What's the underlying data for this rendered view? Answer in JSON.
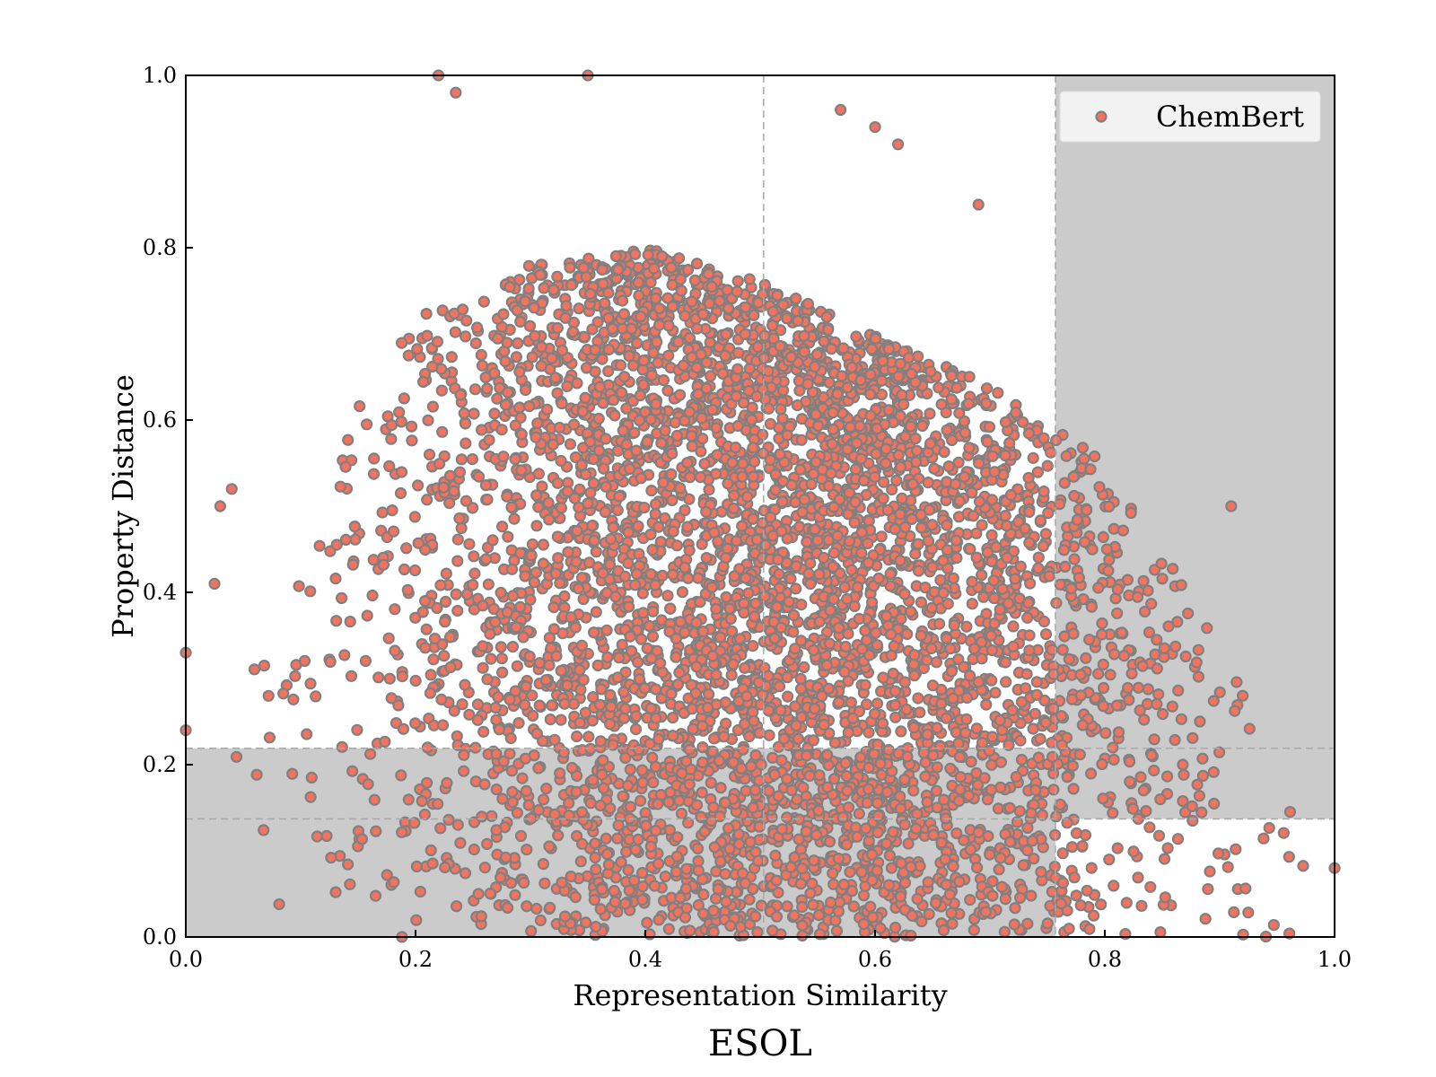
{
  "chart_data": {
    "type": "scatter",
    "title": "",
    "caption": "ESOL",
    "xlabel": "Representation Similarity",
    "ylabel": "Property Distance",
    "xlim": [
      0.0,
      1.0
    ],
    "ylim": [
      0.0,
      1.0
    ],
    "xticks": [
      "0.0",
      "0.2",
      "0.4",
      "0.6",
      "0.8",
      "1.0"
    ],
    "yticks": [
      "0.0",
      "0.2",
      "0.4",
      "0.6",
      "0.8",
      "1.0"
    ],
    "grid": false,
    "legend_position": "top-right",
    "series": [
      {
        "name": "ChemBert",
        "marker_fill": "#f4735f",
        "marker_edge": "#808080",
        "density_profile": {
          "x": [
            0.0,
            0.1,
            0.15,
            0.2,
            0.3,
            0.4,
            0.5,
            0.6,
            0.7,
            0.75,
            0.8,
            0.85,
            0.9,
            0.95,
            1.0
          ],
          "y_max": [
            0.24,
            0.42,
            0.62,
            0.72,
            0.78,
            0.8,
            0.76,
            0.7,
            0.64,
            0.6,
            0.55,
            0.45,
            0.34,
            0.2,
            0.08
          ]
        },
        "outliers": [
          [
            0.0,
            0.33
          ],
          [
            0.0,
            0.24
          ],
          [
            0.03,
            0.5
          ],
          [
            0.04,
            0.52
          ],
          [
            0.025,
            0.41
          ],
          [
            0.22,
            1.0
          ],
          [
            0.235,
            0.98
          ],
          [
            0.35,
            1.0
          ],
          [
            0.57,
            0.96
          ],
          [
            0.6,
            0.94
          ],
          [
            0.62,
            0.92
          ],
          [
            0.69,
            0.85
          ],
          [
            0.91,
            0.5
          ],
          [
            0.92,
            0.28
          ],
          [
            1.0,
            0.08
          ]
        ]
      }
    ],
    "shaded_regions": [
      {
        "x": [
          0.0,
          0.757
        ],
        "y": [
          0.0,
          0.219
        ],
        "color": "#cbcbcb"
      },
      {
        "x": [
          0.757,
          1.0
        ],
        "y": [
          0.137,
          1.0
        ],
        "color": "#cbcbcb"
      }
    ],
    "reference_lines": {
      "vertical": [
        0.503,
        0.757
      ],
      "horizontal": [
        0.219,
        0.137
      ]
    }
  }
}
